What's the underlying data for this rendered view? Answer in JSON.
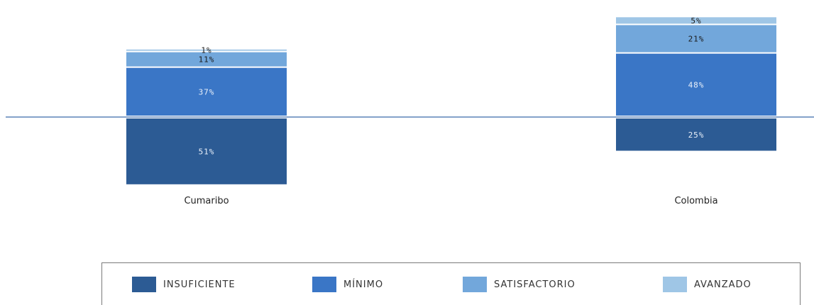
{
  "chart_data": {
    "type": "bar",
    "stacked": "diverging",
    "categories": [
      "Cumaribo",
      "Colombia"
    ],
    "series": [
      {
        "name": "INSUFICIENTE",
        "values": [
          51,
          25
        ],
        "labels": [
          "51%",
          "25%"
        ],
        "color": "#2c5b94",
        "side": "below"
      },
      {
        "name": "MÍNIMO",
        "values": [
          37,
          48
        ],
        "labels": [
          "37%",
          "48%"
        ],
        "color": "#3a76c6",
        "side": "above"
      },
      {
        "name": "SATISFACTORIO",
        "values": [
          11,
          21
        ],
        "labels": [
          "11%",
          "21%"
        ],
        "color": "#72a7db",
        "side": "above"
      },
      {
        "name": "AVANZADO",
        "values": [
          1,
          5
        ],
        "labels": [
          "1%",
          "5%"
        ],
        "color": "#9fc6e6",
        "side": "above"
      }
    ],
    "baseline_color": "#5b84b8",
    "legend_position": "bottom"
  }
}
